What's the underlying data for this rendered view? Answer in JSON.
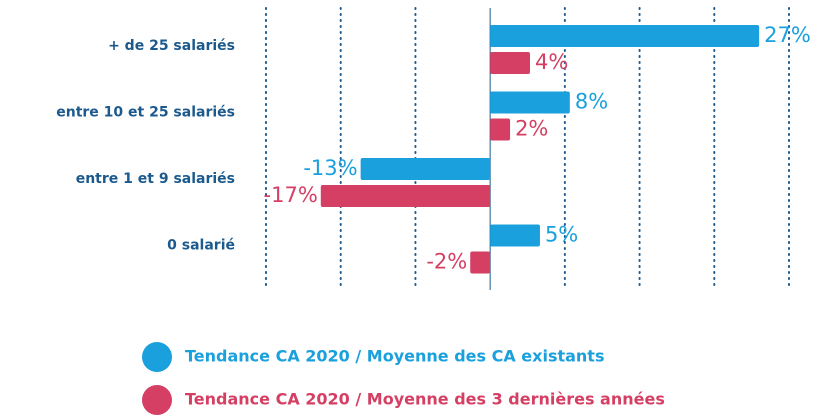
{
  "chart_data": {
    "type": "hbar",
    "categories": [
      "+ de 25 salariés",
      "entre 10 et 25 salariés",
      "entre 1 et 9 salariés",
      "0 salarié"
    ],
    "series": [
      {
        "name": "Tendance CA 2020 / Moyenne des CA existants",
        "color": "#1aa0dc",
        "values": [
          27,
          8,
          -13,
          5
        ],
        "value_labels": [
          "27%",
          "8%",
          "-13%",
          "5%"
        ]
      },
      {
        "name": "Tendance CA 2020 / Moyenne des 3 dernières années",
        "color": "#d43f63",
        "values": [
          4,
          2,
          -17,
          -2
        ],
        "value_labels": [
          "4%",
          "2%",
          "-17%",
          "-2%"
        ]
      }
    ],
    "xlim": [
      -22.5,
      30
    ],
    "xticks": [
      -22.5,
      -15,
      -7.5,
      0,
      7.5,
      15,
      22.5,
      30
    ],
    "grid": true
  }
}
